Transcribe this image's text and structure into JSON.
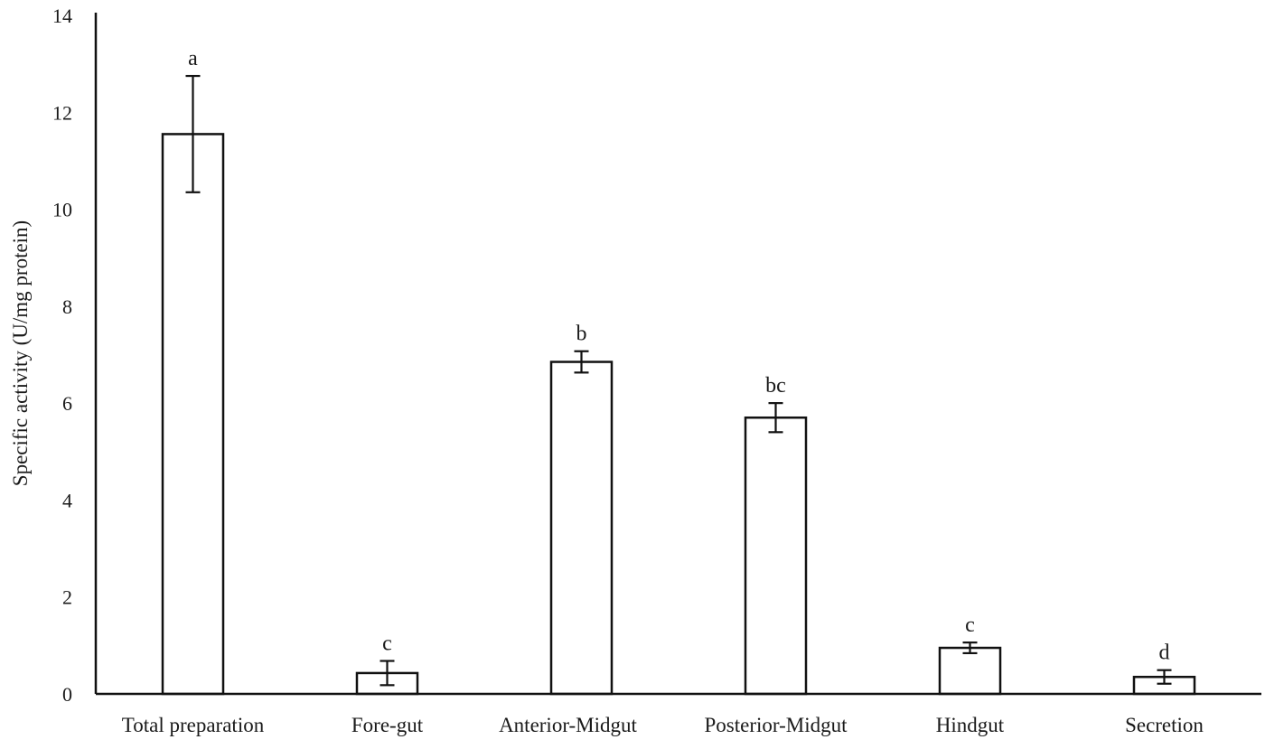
{
  "chart_data": {
    "type": "bar",
    "title": "",
    "xlabel": "",
    "ylabel": "Specific activity (U/mg protein)",
    "ylim": [
      0,
      14
    ],
    "yticks": [
      0,
      2,
      4,
      6,
      8,
      10,
      12,
      14
    ],
    "grid": false,
    "legend": null,
    "categories": [
      "Total preparation",
      "Fore-gut",
      "Anterior-Midgut",
      "Posterior-Midgut",
      "Hindgut",
      "Secretion"
    ],
    "values": [
      11.55,
      0.43,
      6.85,
      5.7,
      0.95,
      0.35
    ],
    "errors": [
      1.2,
      0.25,
      0.22,
      0.3,
      0.11,
      0.14
    ],
    "annotations": [
      "a",
      "c",
      "b",
      "bc",
      "c",
      "d"
    ],
    "colors": {
      "bar_fill": "#ffffff",
      "bar_stroke": "#111111",
      "axis": "#111111"
    }
  }
}
